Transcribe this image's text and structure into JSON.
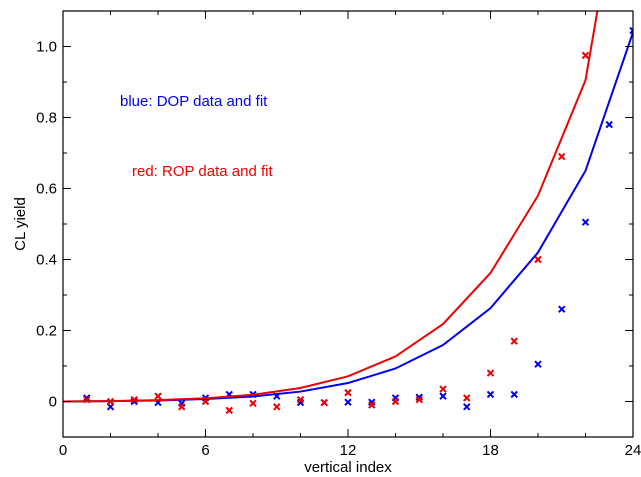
{
  "colors": {
    "blue": "#0000ee",
    "red": "#ee0000",
    "axis": "#000000",
    "background": "#ffffff"
  },
  "chart_data": {
    "type": "scatter",
    "title": "",
    "xlabel": "vertical index",
    "ylabel": "CL yield",
    "xlim": [
      0,
      24
    ],
    "ylim": [
      -0.1,
      1.1
    ],
    "x_ticks": [
      0,
      6,
      12,
      18,
      24
    ],
    "y_ticks": [
      0,
      0.2,
      0.4,
      0.6,
      0.8,
      1.0
    ],
    "y_tick_labels": [
      "0",
      "0.2",
      "0.4",
      "0.6",
      "0.8",
      "1.0"
    ],
    "grid": false,
    "annotations": [
      {
        "text": "blue: DOP data and fit",
        "color": "#0000ee"
      },
      {
        "text": "red: ROP data and fit",
        "color": "#ee0000"
      }
    ],
    "series": [
      {
        "kind": "points",
        "marker": "x",
        "color": "#0000ee",
        "x": [
          1,
          2,
          3,
          4,
          5,
          6,
          7,
          8,
          9,
          10,
          11,
          12,
          13,
          14,
          15,
          16,
          17,
          18,
          19,
          20,
          21,
          22,
          23,
          24
        ],
        "y": [
          0.01,
          -0.015,
          0.0,
          -0.003,
          -0.005,
          0.01,
          0.02,
          0.02,
          0.015,
          -0.003,
          -0.003,
          -0.002,
          -0.002,
          0.01,
          0.012,
          0.015,
          -0.015,
          0.02,
          0.02,
          0.105,
          0.26,
          0.505,
          0.78,
          1.045
        ]
      },
      {
        "kind": "points",
        "marker": "x",
        "color": "#ee0000",
        "x": [
          1,
          2,
          3,
          4,
          5,
          6,
          7,
          8,
          9,
          10,
          11,
          12,
          13,
          14,
          15,
          16,
          17,
          18,
          19,
          20,
          21,
          22
        ],
        "y": [
          0.005,
          0.0,
          0.005,
          0.015,
          -0.015,
          0.0,
          -0.025,
          -0.005,
          -0.015,
          0.005,
          -0.003,
          0.025,
          -0.01,
          0.0,
          0.005,
          0.035,
          0.01,
          0.08,
          0.17,
          0.4,
          0.69,
          0.975
        ]
      },
      {
        "kind": "curve",
        "color": "#0000ee",
        "x": [
          0,
          2,
          4,
          6,
          8,
          10,
          12,
          14,
          16,
          18,
          20,
          22,
          24
        ],
        "y": [
          0.0,
          0.001,
          0.003,
          0.007,
          0.014,
          0.028,
          0.052,
          0.093,
          0.159,
          0.263,
          0.42,
          0.65,
          1.04
        ]
      },
      {
        "kind": "curve",
        "color": "#ee0000",
        "x": [
          0,
          2,
          4,
          6,
          8,
          10,
          12,
          14,
          16,
          18,
          20,
          22,
          22.5
        ],
        "y": [
          0.0,
          0.001,
          0.004,
          0.009,
          0.019,
          0.038,
          0.071,
          0.127,
          0.218,
          0.362,
          0.58,
          0.905,
          1.1
        ]
      }
    ]
  }
}
